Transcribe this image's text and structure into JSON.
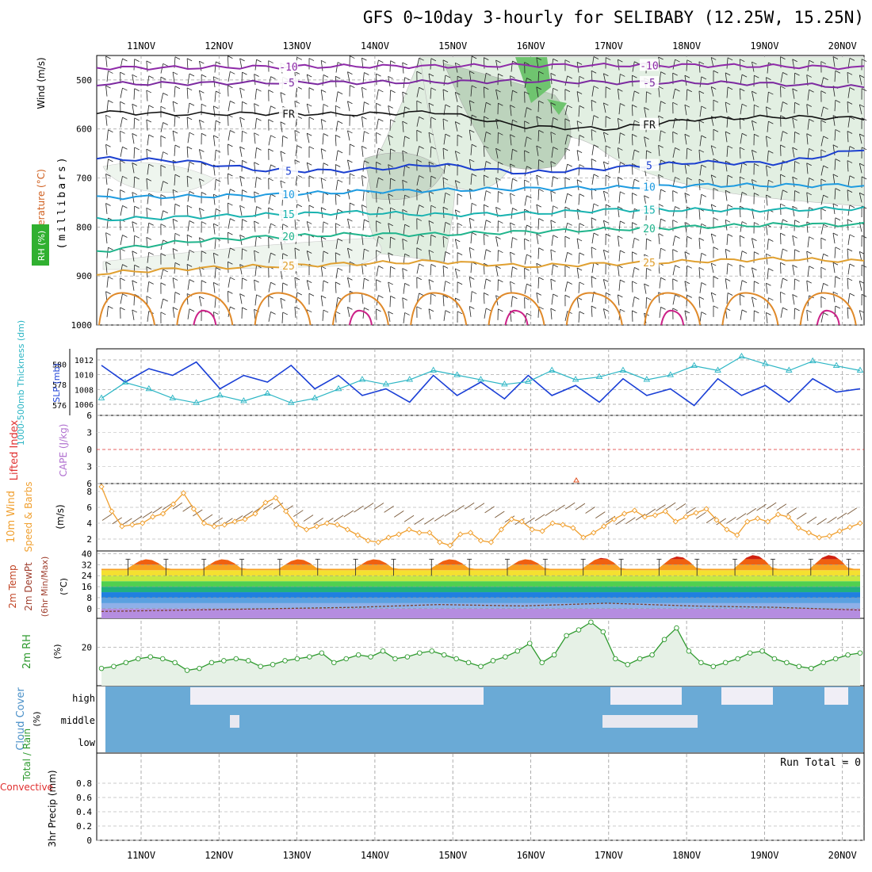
{
  "title": "GFS 0~10day 3-hourly for SELIBABY (12.25W, 15.25N)",
  "dates": [
    "11NOV",
    "12NOV",
    "13NOV",
    "14NOV",
    "15NOV",
    "16NOV",
    "17NOV",
    "18NOV",
    "19NOV",
    "20NOV"
  ],
  "colors": {
    "rh_green": "#2e9a2e",
    "slp_blue": "#1a3fd6",
    "thickness_cyan": "#2bb5c4",
    "wind_orange": "#f0a030",
    "barb_brown": "#7a5a3a",
    "cloud_blue": "#6aaad6",
    "cape_purple": "#b070d0",
    "li_red": "#e03030"
  },
  "chart_data": [
    {
      "type": "contour",
      "panel": "upper_air",
      "ylabels": {
        "rh": "RH (%)",
        "temp": "Temperature (°C)",
        "wind": "Wind (m/s)",
        "axis": "(millibars)"
      },
      "ylim": [
        1000,
        450
      ],
      "yticks": [
        500,
        600,
        700,
        800,
        900,
        1000
      ],
      "isotherms": [
        {
          "label": "-10",
          "p": [
            475,
            475,
            473,
            472,
            472,
            470,
            470,
            470,
            472,
            475
          ]
        },
        {
          "label": "-5",
          "p": [
            508,
            507,
            505,
            505,
            504,
            502,
            505,
            505,
            508,
            515
          ]
        },
        {
          "label": "FR",
          "p": [
            565,
            570,
            568,
            570,
            565,
            595,
            600,
            580,
            575,
            578
          ]
        },
        {
          "label": "5",
          "p": [
            660,
            665,
            685,
            685,
            672,
            690,
            680,
            668,
            670,
            640
          ]
        },
        {
          "label": "10",
          "p": [
            740,
            738,
            735,
            728,
            725,
            722,
            720,
            715,
            715,
            715
          ]
        },
        {
          "label": "15",
          "p": [
            785,
            780,
            775,
            770,
            775,
            773,
            765,
            765,
            765,
            762
          ]
        },
        {
          "label": "20",
          "p": [
            850,
            830,
            820,
            815,
            815,
            810,
            805,
            800,
            795,
            795
          ]
        },
        {
          "label": "25",
          "p": [
            895,
            885,
            880,
            875,
            870,
            880,
            875,
            870,
            865,
            870
          ]
        }
      ]
    },
    {
      "type": "line",
      "panel": "thickness_slp",
      "ylabels": {
        "thickness": "1000-500mb Thickness (dm)",
        "slp": "SLP (mb)"
      },
      "thickness_ticks": [
        580,
        578,
        576
      ],
      "slp_ticks": [
        1012,
        1010,
        1008,
        1006
      ],
      "series": [
        {
          "name": "SLP (mb)",
          "ylim": [
            1004.5,
            1013.5
          ],
          "values": [
            1011.5,
            1009,
            1011,
            1010,
            1012,
            1008,
            1010,
            1009,
            1011.5,
            1008,
            1010,
            1007,
            1008,
            1006,
            1010,
            1007,
            1009,
            1006.5,
            1010,
            1007,
            1008.5,
            1006,
            1009.5,
            1007,
            1008,
            1005.5,
            1009.5,
            1007,
            1008.5,
            1006,
            1009.5,
            1007.5,
            1008
          ]
        },
        {
          "name": "Thickness (dm)",
          "ylim": [
            575,
            581.5
          ],
          "values": [
            576.5,
            578.2,
            577.5,
            576.5,
            576,
            576.8,
            576.2,
            577,
            576,
            576.5,
            577.5,
            578.5,
            578,
            578.5,
            579.5,
            579,
            578.5,
            578,
            578.3,
            579.5,
            578.5,
            578.8,
            579.5,
            578.5,
            579,
            580,
            579.5,
            581,
            580.2,
            579.5,
            580.5,
            580,
            579.5
          ]
        }
      ]
    },
    {
      "type": "line",
      "panel": "stability",
      "ylabels": {
        "li": "Lifted Index",
        "cape": "CAPE (J/kg)"
      },
      "ylim": [
        6,
        -6
      ],
      "yticks": [
        -6,
        -3,
        0,
        3,
        6
      ],
      "values": [
        0,
        0,
        0,
        0,
        0,
        0,
        0,
        0,
        0,
        0
      ]
    },
    {
      "type": "line",
      "panel": "wind10m",
      "ylabels": {
        "title": "10m Wind",
        "sub": "Speed & Barbs",
        "unit": "(m/s)"
      },
      "ylim": [
        0.5,
        9
      ],
      "yticks": [
        2,
        4,
        6,
        8
      ],
      "values": [
        8.6,
        5.5,
        3.6,
        3.8,
        4,
        4.8,
        5.2,
        6.4,
        7.8,
        5.8,
        4,
        3.6,
        3.8,
        4.2,
        4.5,
        5.2,
        6.6,
        7.2,
        5.5,
        3.8,
        3.2,
        3.6,
        4,
        3.8,
        3.2,
        2.5,
        1.8,
        1.6,
        2.2,
        2.6,
        3.2,
        2.8,
        2.8,
        1.6,
        1.2,
        2.6,
        2.8,
        1.8,
        1.6,
        3.2,
        4.5,
        4.2,
        3.2,
        3,
        4,
        3.8,
        3.4,
        2.2,
        2.8,
        3.6,
        4.5,
        5.2,
        5.6,
        4.8,
        5,
        5.5,
        4.2,
        4.8,
        5.3,
        5.8,
        4.4,
        3.2,
        2.5,
        4.2,
        4.6,
        4.2,
        5.1,
        4.8,
        3.4,
        2.8,
        2.2,
        2.4,
        3,
        3.5,
        4
      ]
    },
    {
      "type": "area",
      "panel": "temperature",
      "ylabels": {
        "a": "2m Temp",
        "b": "2m DewPt",
        "c": "(6hr Min/Max)",
        "unit": "(°C)"
      },
      "ylim": [
        -7,
        42
      ],
      "yticks": [
        40,
        32,
        24,
        16,
        8,
        0
      ],
      "temp_min": 24,
      "temp_max": [
        36,
        36,
        36,
        36,
        36,
        36,
        37,
        38,
        39,
        39
      ],
      "dewpoint": [
        -2,
        -1,
        0,
        1,
        3,
        2,
        4,
        2,
        1,
        -1
      ]
    },
    {
      "type": "line",
      "panel": "rh2m",
      "ylabels": {
        "name": "2m RH",
        "unit": "(%)"
      },
      "ylim": [
        0,
        35
      ],
      "yticks": [
        20
      ],
      "values": [
        9,
        10,
        12,
        14,
        15,
        14,
        12,
        8,
        9,
        12,
        13,
        14,
        13,
        10,
        11,
        13,
        14,
        15,
        17,
        12,
        14,
        16,
        15,
        18,
        14,
        15,
        17,
        18,
        16,
        14,
        12,
        10,
        13,
        15,
        18,
        22,
        12,
        16,
        26,
        29,
        33,
        28,
        14,
        11,
        14,
        16,
        24,
        30,
        18,
        12,
        10,
        12,
        14,
        17,
        18,
        14,
        12,
        10,
        9,
        12,
        14,
        16,
        17
      ]
    },
    {
      "type": "heatmap",
      "panel": "cloud_cover",
      "ylabels": {
        "name": "Cloud Cover",
        "unit": "(%)"
      },
      "levels": [
        "high",
        "middle",
        "low"
      ]
    },
    {
      "type": "bar",
      "panel": "precip",
      "ylabels": {
        "a": "Total / Rain",
        "b": "Convective",
        "unit": "3hr Precip (mm)"
      },
      "ylim": [
        0,
        1
      ],
      "yticks": [
        0,
        0.2,
        0.4,
        0.6,
        0.8
      ],
      "ytick_labels": [
        "0",
        "0.2",
        "0.4",
        "0.6",
        "0.8"
      ],
      "values": [
        0,
        0,
        0,
        0,
        0,
        0,
        0,
        0,
        0,
        0
      ],
      "run_total": "Run Total = 0"
    }
  ]
}
